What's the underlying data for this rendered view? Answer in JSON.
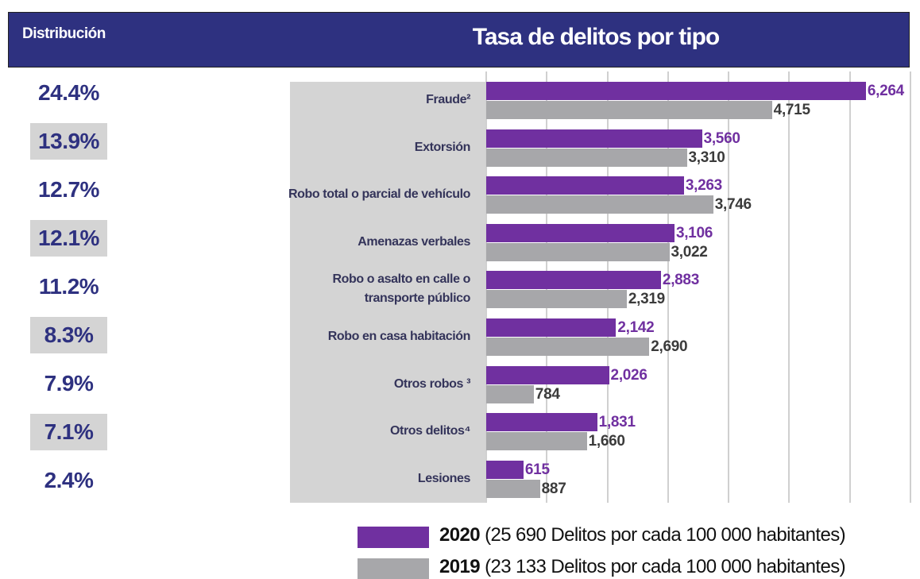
{
  "chart_data": {
    "type": "bar",
    "orientation": "horizontal",
    "title": "Tasa de delitos por tipo",
    "categories": [
      "Fraude²",
      "Extorsión",
      "Robo total o parcial de vehículo",
      "Amenazas verbales",
      "Robo o asalto en calle o transporte público",
      "Robo en casa habitación",
      "Otros robos ³",
      "Otros delitos⁴",
      "Lesiones"
    ],
    "series": [
      {
        "name": "2020",
        "legend_note": "(25 690 Delitos por cada 100 000 habitantes)",
        "color": "#7030a0",
        "values": [
          6264,
          3560,
          3263,
          3106,
          2883,
          2142,
          2026,
          1831,
          615
        ],
        "value_labels": [
          "6,264",
          "3,560",
          "3,263",
          "3,106",
          "2,883",
          "2,142",
          "2,026",
          "1,831",
          "615"
        ]
      },
      {
        "name": "2019",
        "legend_note": "(23 133 Delitos por cada 100 000 habitantes)",
        "color": "#a7a7aa",
        "values": [
          4715,
          3310,
          3746,
          3022,
          2319,
          2690,
          784,
          1660,
          887
        ],
        "value_labels": [
          "4,715",
          "3,310",
          "3,746",
          "3,022",
          "2,319",
          "2,690",
          "784",
          "1,660",
          "887"
        ]
      }
    ],
    "xlim": [
      0,
      7000
    ],
    "xticks": [
      0,
      1000,
      2000,
      3000,
      4000,
      5000,
      6000,
      7000
    ],
    "grid": true,
    "distribution": {
      "title": "Distribución",
      "labels": [
        "24.4%",
        "13.9%",
        "12.7%",
        "12.1%",
        "11.2%",
        "8.3%",
        "7.9%",
        "7.1%",
        "2.4%"
      ]
    }
  }
}
